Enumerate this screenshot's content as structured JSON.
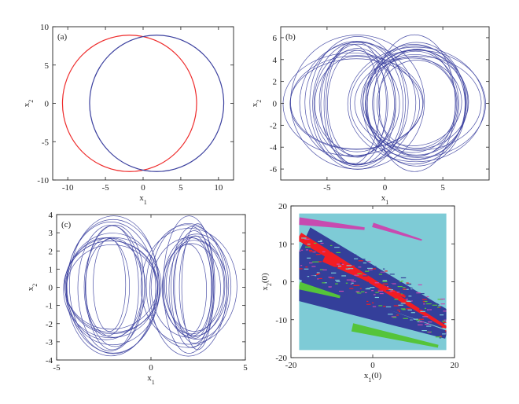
{
  "colors": {
    "blue": "#3a3f9e",
    "red": "#ee2a2a",
    "basin_cyan": "#7ecbd6",
    "basin_navy": "#343f9a",
    "basin_red": "#f21d24",
    "basin_green": "#55c43a",
    "basin_magenta": "#c84ab0",
    "axis": "#222222"
  },
  "chart_data": [
    {
      "id": "a",
      "type": "line",
      "panel_label": "(a)",
      "xlabel": "x",
      "xlabel_sub": "1",
      "ylabel": "x",
      "ylabel_sub": "2",
      "xlim": [
        -12,
        12
      ],
      "ylim": [
        -10,
        10
      ],
      "xticks": [
        -10,
        -5,
        0,
        5,
        10
      ],
      "yticks": [
        -10,
        -5,
        0,
        5,
        10
      ],
      "series": [
        {
          "kind": "ellipse",
          "cx": -1.8,
          "cy": 0,
          "rx": 8.9,
          "ry": 8.9,
          "color": "red"
        },
        {
          "kind": "ellipse",
          "cx": 1.8,
          "cy": 0,
          "rx": 8.9,
          "ry": 8.9,
          "color": "blue"
        }
      ]
    },
    {
      "id": "b",
      "type": "line",
      "panel_label": "(b)",
      "xlabel": "x",
      "xlabel_sub": "1",
      "ylabel": "x",
      "ylabel_sub": "2",
      "xlim": [
        -9,
        9
      ],
      "ylim": [
        -7,
        7
      ],
      "xticks": [
        -5,
        0,
        5
      ],
      "yticks": [
        -6,
        -4,
        -2,
        0,
        2,
        4,
        6
      ],
      "series": [
        {
          "kind": "loop-bundle",
          "centers": [
            -2.6,
            2.6
          ],
          "rx_range": [
            2.4,
            6.2
          ],
          "ry_range": [
            4.0,
            6.4
          ],
          "loops": 30,
          "color": "blue"
        }
      ]
    },
    {
      "id": "c",
      "type": "line",
      "panel_label": "(c)",
      "xlabel": "x",
      "xlabel_sub": "1",
      "ylabel": "x",
      "ylabel_sub": "2",
      "xlim": [
        -5,
        5
      ],
      "ylim": [
        -4,
        4
      ],
      "xticks": [
        -5,
        0,
        5
      ],
      "yticks": [
        -4,
        -3,
        -2,
        -1,
        0,
        1,
        2,
        3,
        4
      ],
      "series": [
        {
          "kind": "loop-bundle",
          "centers": [
            -2.2,
            2.2
          ],
          "rx_range": [
            0.8,
            2.6
          ],
          "ry_range": [
            2.4,
            3.8
          ],
          "loops": 30,
          "color": "blue"
        }
      ]
    },
    {
      "id": "d",
      "type": "heatmap",
      "xlabel": "x",
      "xlabel_sub": "1",
      "xlabel_suffix": "(0)",
      "ylabel": "x",
      "ylabel_sub": "2",
      "ylabel_suffix": "(0)",
      "xlim": [
        -20,
        20
      ],
      "ylim": [
        -20,
        20
      ],
      "xticks": [
        -20,
        0,
        20
      ],
      "yticks": [
        -20,
        -10,
        0,
        10,
        20
      ],
      "extent": [
        -18,
        18,
        -18,
        18
      ],
      "background": "basin_cyan",
      "bands": [
        {
          "color": "basin_navy",
          "from": [
            -18,
            8
          ],
          "to": [
            18,
            -10
          ],
          "width": 14
        },
        {
          "color": "basin_navy",
          "from": [
            -18,
            -2
          ],
          "to": [
            18,
            -14
          ],
          "width": 6
        },
        {
          "color": "basin_red",
          "from": [
            -18,
            12
          ],
          "to": [
            18,
            -12
          ],
          "width": 2.2
        },
        {
          "color": "basin_red",
          "from": [
            -12,
            6
          ],
          "to": [
            8,
            -4
          ],
          "width": 1.6
        },
        {
          "color": "basin_green",
          "from": [
            -18,
            -1
          ],
          "to": [
            -8,
            -4
          ],
          "width": 2.0
        },
        {
          "color": "basin_green",
          "from": [
            -5,
            -12
          ],
          "to": [
            16,
            -17
          ],
          "width": 2.2
        },
        {
          "color": "basin_magenta",
          "from": [
            -18,
            16
          ],
          "to": [
            -2,
            14
          ],
          "width": 2.0
        },
        {
          "color": "basin_magenta",
          "from": [
            0,
            15
          ],
          "to": [
            12,
            11
          ],
          "width": 1.2
        }
      ]
    }
  ]
}
